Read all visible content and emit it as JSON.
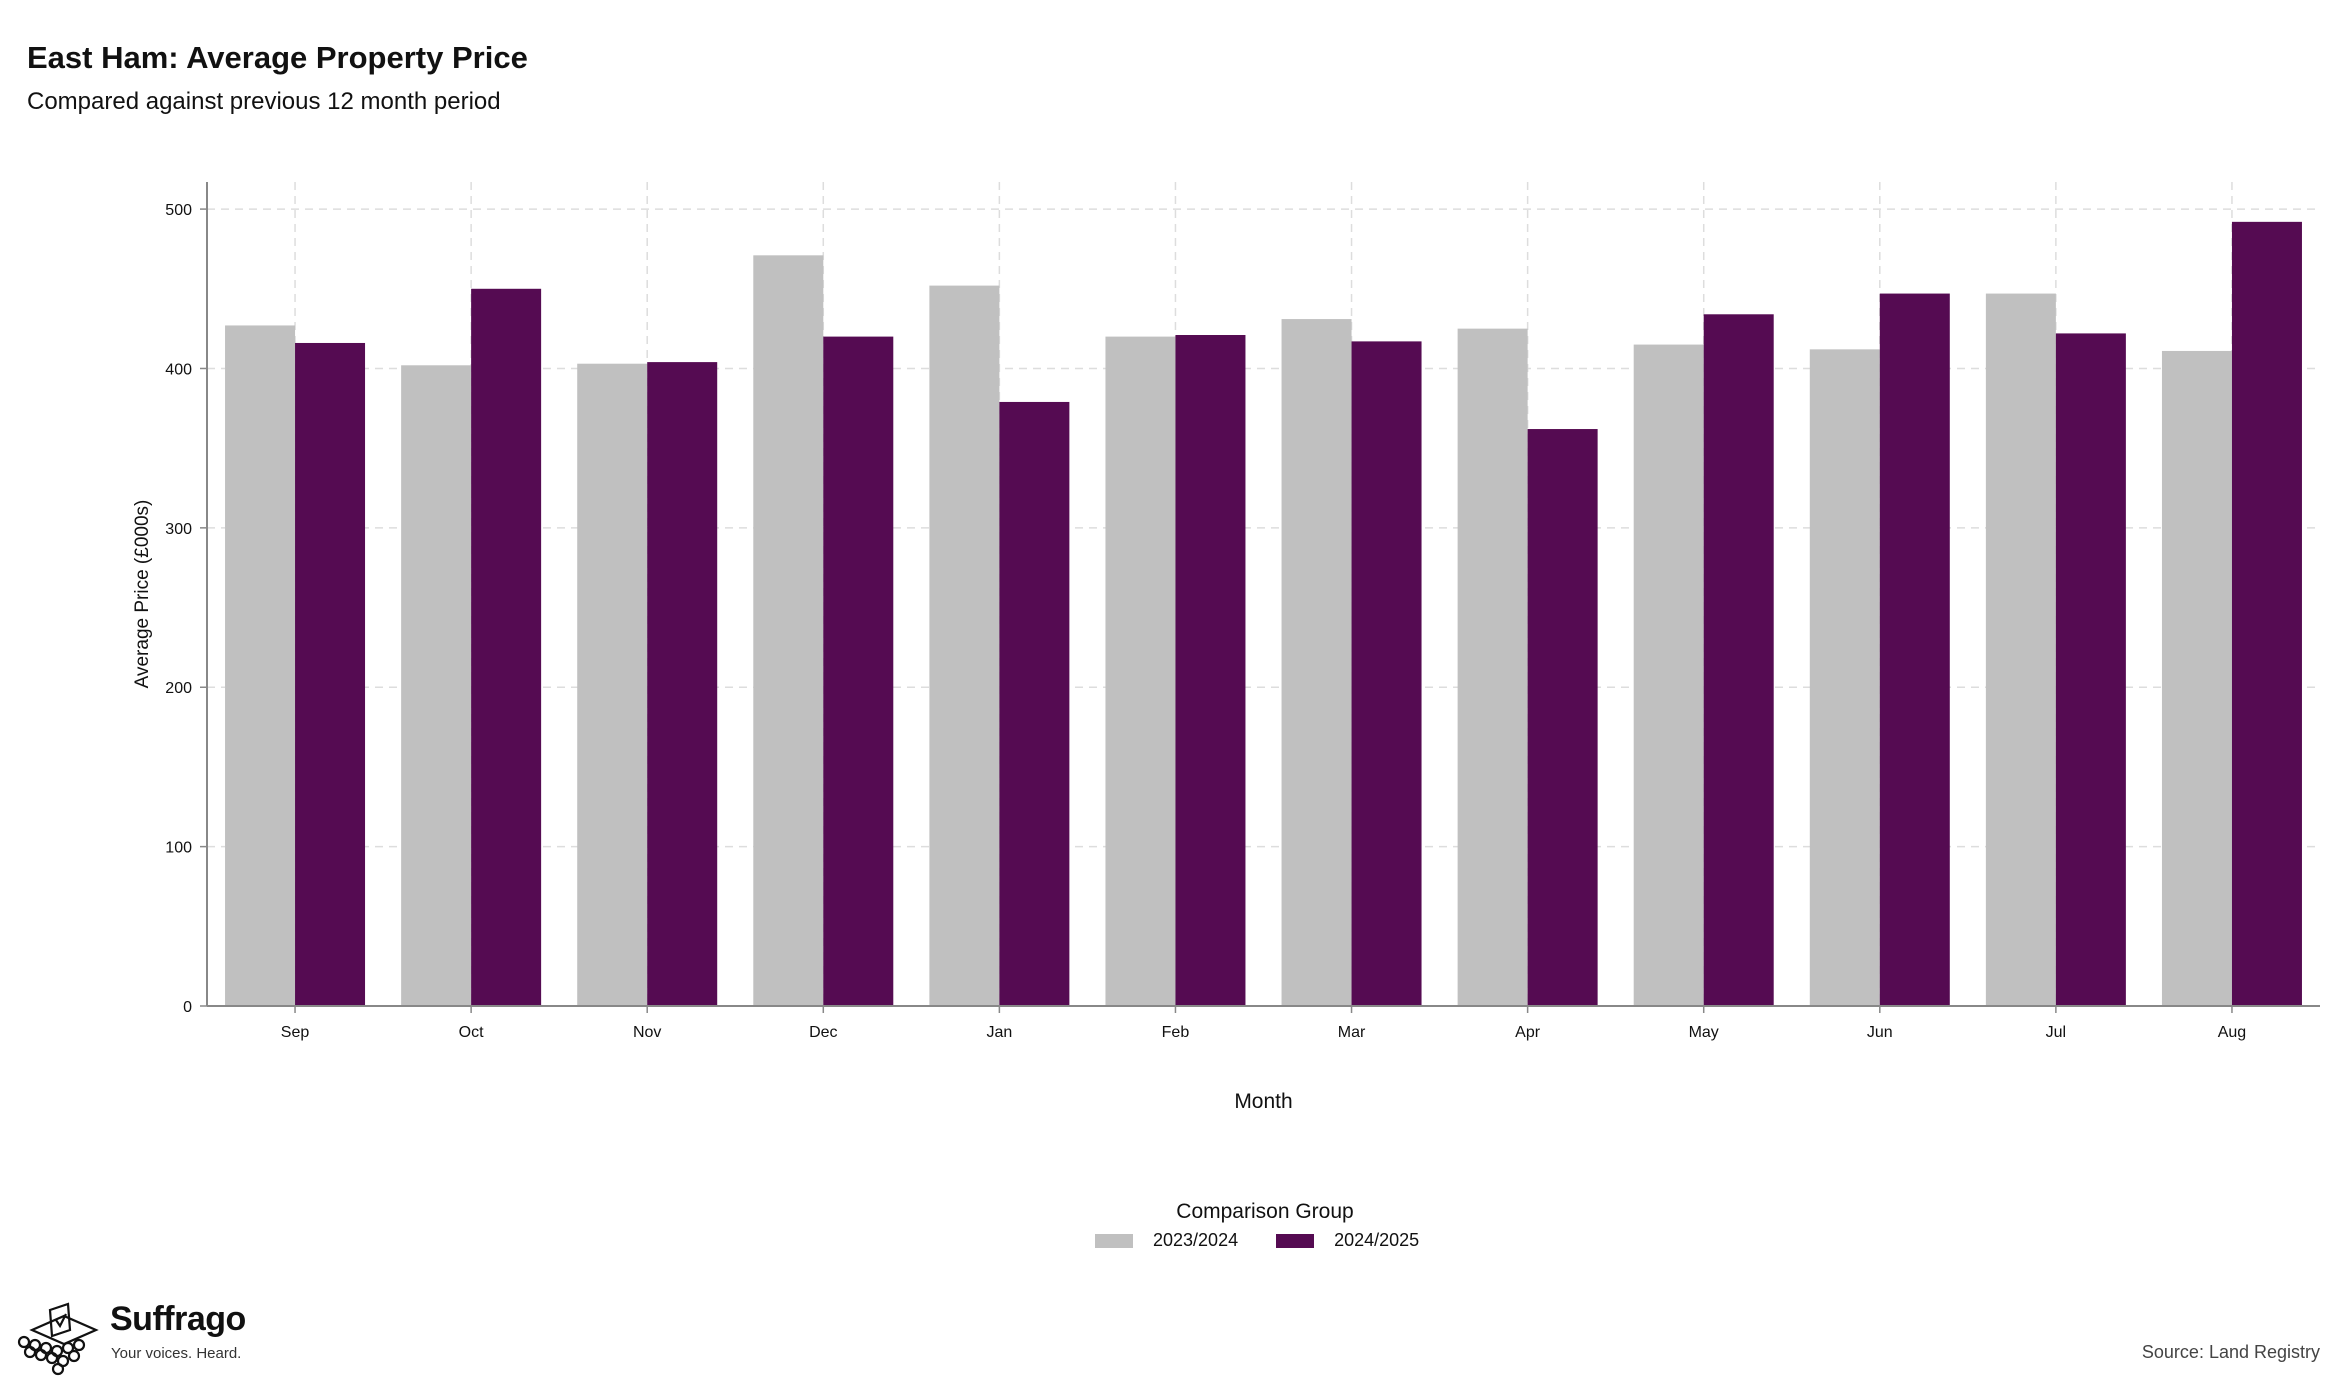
{
  "header": {
    "title": "East Ham: Average Property Price",
    "subtitle": "Compared against previous 12 month period"
  },
  "legend": {
    "title": "Comparison Group"
  },
  "brand": {
    "name": "Suffrago",
    "tagline": "Your voices. Heard."
  },
  "source": "Source: Land Registry",
  "colors": {
    "series_2023": "#c0c0c0",
    "series_2024": "#550b52",
    "grid": "#dddddd",
    "axis": "#888888"
  },
  "chart_data": {
    "type": "bar",
    "xlabel": "Month",
    "ylabel": "Average Price (£000s)",
    "ylim": [
      0,
      517
    ],
    "yticks": [
      0,
      100,
      200,
      300,
      400,
      500
    ],
    "grid": true,
    "legend_position": "bottom",
    "categories": [
      "Sep",
      "Oct",
      "Nov",
      "Dec",
      "Jan",
      "Feb",
      "Mar",
      "Apr",
      "May",
      "Jun",
      "Jul",
      "Aug"
    ],
    "series": [
      {
        "name": "2023/2024",
        "values": [
          427,
          402,
          403,
          471,
          452,
          420,
          431,
          425,
          415,
          412,
          447,
          411
        ]
      },
      {
        "name": "2024/2025",
        "values": [
          416,
          450,
          404,
          420,
          379,
          421,
          417,
          362,
          434,
          447,
          422,
          492
        ]
      }
    ]
  }
}
